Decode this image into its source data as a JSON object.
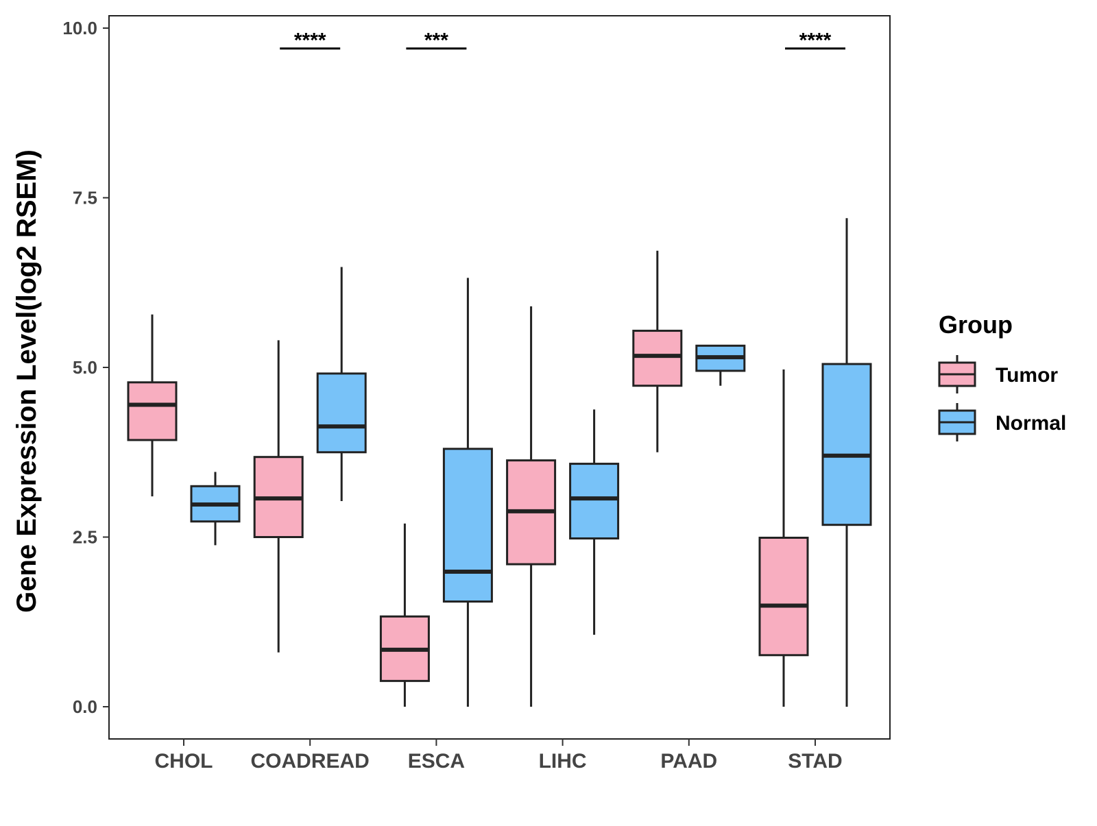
{
  "chart_data": {
    "type": "boxplot",
    "title": "",
    "xlabel": "",
    "ylabel": "Gene Expression Level(log2 RSEM)",
    "ylim": [
      -0.47,
      10.19
    ],
    "yticks": [
      0.0,
      2.5,
      5.0,
      7.5,
      10.0
    ],
    "ytick_labels": [
      "0.0",
      "2.5",
      "5.0",
      "7.5",
      "10.0"
    ],
    "categories": [
      "CHOL",
      "COADREAD",
      "ESCA",
      "LIHC",
      "PAAD",
      "STAD"
    ],
    "legend": {
      "title": "Group",
      "position": "right",
      "entries": [
        {
          "name": "Tumor",
          "color": "#F8AEC0"
        },
        {
          "name": "Normal",
          "color": "#78C2F8"
        }
      ]
    },
    "series": [
      {
        "name": "Tumor",
        "color": "#F8AEC0",
        "boxes": [
          {
            "category": "CHOL",
            "min": 3.1,
            "q1": 3.93,
            "median": 4.45,
            "q3": 4.78,
            "max": 5.78
          },
          {
            "category": "COADREAD",
            "min": 0.8,
            "q1": 2.5,
            "median": 3.07,
            "q3": 3.68,
            "max": 5.4
          },
          {
            "category": "ESCA",
            "min": 0.0,
            "q1": 0.38,
            "median": 0.84,
            "q3": 1.33,
            "max": 2.7
          },
          {
            "category": "LIHC",
            "min": 0.0,
            "q1": 2.1,
            "median": 2.88,
            "q3": 3.63,
            "max": 5.9
          },
          {
            "category": "PAAD",
            "min": 3.75,
            "q1": 4.73,
            "median": 5.17,
            "q3": 5.54,
            "max": 6.72
          },
          {
            "category": "STAD",
            "min": 0.0,
            "q1": 0.76,
            "median": 1.49,
            "q3": 2.49,
            "max": 4.97
          }
        ]
      },
      {
        "name": "Normal",
        "color": "#78C2F8",
        "boxes": [
          {
            "category": "CHOL",
            "min": 2.38,
            "q1": 2.73,
            "median": 2.98,
            "q3": 3.25,
            "max": 3.46
          },
          {
            "category": "COADREAD",
            "min": 3.03,
            "q1": 3.75,
            "median": 4.13,
            "q3": 4.91,
            "max": 6.48
          },
          {
            "category": "ESCA",
            "min": 0.0,
            "q1": 1.55,
            "median": 1.99,
            "q3": 3.8,
            "max": 6.32
          },
          {
            "category": "LIHC",
            "min": 1.06,
            "q1": 2.48,
            "median": 3.07,
            "q3": 3.58,
            "max": 4.38
          },
          {
            "category": "PAAD",
            "min": 4.73,
            "q1": 4.95,
            "median": 5.15,
            "q3": 5.32,
            "max": 5.32
          },
          {
            "category": "STAD",
            "min": 0.0,
            "q1": 2.68,
            "median": 3.7,
            "q3": 5.05,
            "max": 7.2
          }
        ]
      }
    ],
    "annotations": [
      {
        "category": "COADREAD",
        "label": "****",
        "y": 9.7
      },
      {
        "category": "ESCA",
        "label": "***",
        "y": 9.7
      },
      {
        "category": "STAD",
        "label": "****",
        "y": 9.7
      }
    ]
  }
}
